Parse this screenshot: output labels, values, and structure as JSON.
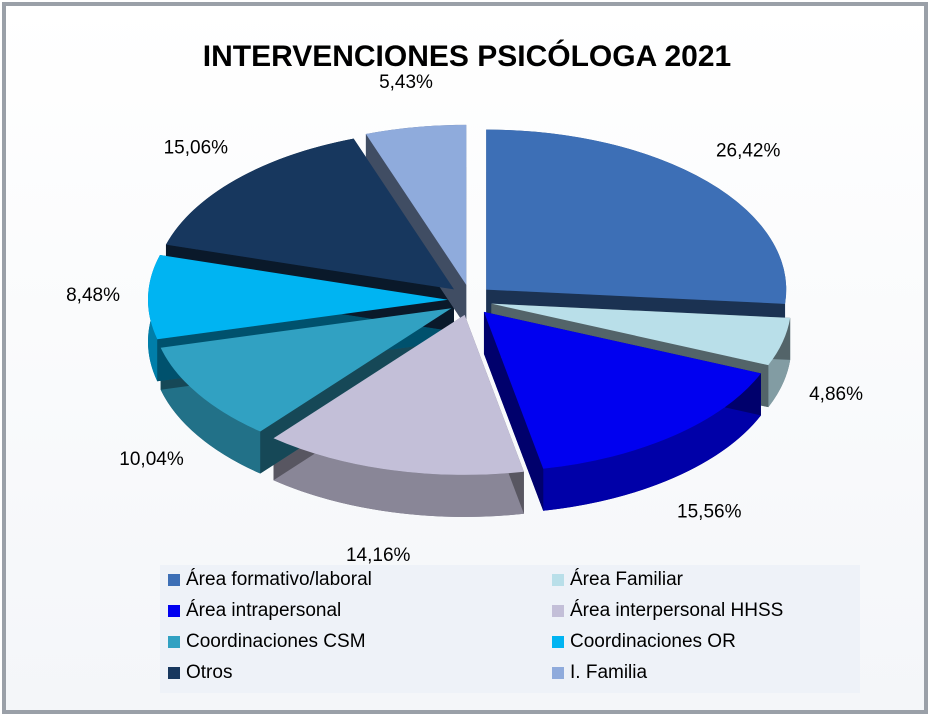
{
  "chart_data": {
    "type": "pie",
    "title": "INTERVENCIONES PSICÓLOGA 2021",
    "categories": [
      "Área formativo/laboral",
      "Área Familiar",
      "Área intrapersonal",
      "Área interpersonal HHSS",
      "Coordinaciones CSM",
      "Coordinaciones OR",
      "Otros",
      "I. Familia"
    ],
    "values": [
      26.42,
      4.86,
      15.56,
      14.16,
      10.04,
      8.48,
      15.06,
      5.43
    ],
    "value_labels": [
      "26,42%",
      "4,86%",
      "15,56%",
      "14,16%",
      "10,04%",
      "8,48%",
      "15,06%",
      "5,43%"
    ],
    "colors": [
      "#3d6fb6",
      "#b9dfe9",
      "#0000f0",
      "#c3bfd8",
      "#31a1c2",
      "#00b4f2",
      "#17375e",
      "#8fabdc"
    ],
    "legend": "bottom"
  }
}
